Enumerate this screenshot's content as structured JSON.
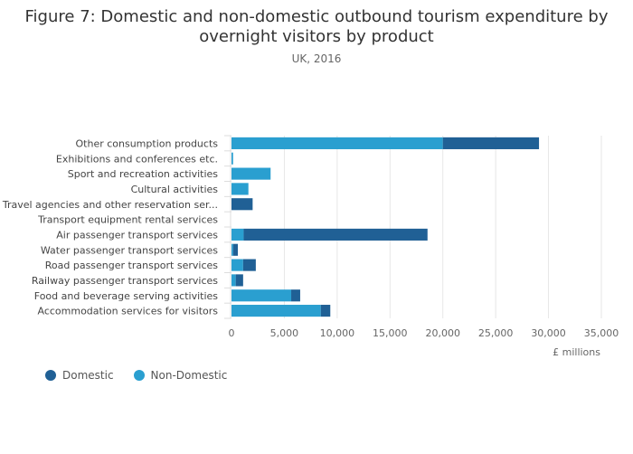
{
  "chart_data": {
    "type": "bar",
    "orientation": "horizontal",
    "stacked": true,
    "title_lines": [
      "Figure 7: Domestic and non-domestic outbound tourism expenditure by",
      "overnight visitors by product"
    ],
    "subtitle": "UK, 2016",
    "xlabel": "£ millions",
    "xlim": [
      0,
      35000
    ],
    "xticks": [
      0,
      5000,
      10000,
      15000,
      20000,
      25000,
      30000,
      35000
    ],
    "xtick_labels": [
      "0",
      "5,000",
      "10,000",
      "15,000",
      "20,000",
      "25,000",
      "30,000",
      "35,000"
    ],
    "grid": true,
    "categories": [
      "Other consumption products",
      "Exhibitions and conferences etc.",
      "Sport and recreation activities",
      "Cultural activities",
      "Travel agencies and other reservation ser...",
      "Transport equipment rental services",
      "Air passenger transport services",
      "Water passenger transport services",
      "Road passenger transport services",
      "Railway passenger transport services",
      "Food and beverage serving activities",
      "Accommodation services for visitors"
    ],
    "series": [
      {
        "name": "Non-Domestic",
        "color": "#2a9fd0",
        "values": [
          20000,
          150,
          3700,
          1600,
          0,
          0,
          1150,
          150,
          1100,
          400,
          5650,
          8450
        ]
      },
      {
        "name": "Domestic",
        "color": "#206095",
        "values": [
          9100,
          0,
          0,
          0,
          2000,
          0,
          17400,
          450,
          1200,
          700,
          850,
          900
        ]
      }
    ],
    "legend": {
      "position": "bottom-left",
      "order": [
        "Domestic",
        "Non-Domestic"
      ]
    }
  }
}
